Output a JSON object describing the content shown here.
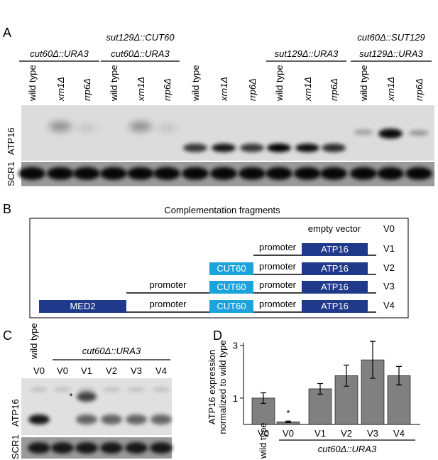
{
  "panel_labels": [
    "A",
    "B",
    "C",
    "D"
  ],
  "panel_a": {
    "groups": [
      {
        "headers": [
          "cut60Δ::URA3"
        ],
        "lanes": [
          "wild type",
          "xrn1Δ",
          "rrp6Δ"
        ]
      },
      {
        "headers": [
          "sut129Δ::CUT60",
          "cut60Δ::URA3"
        ],
        "lanes": [
          "wild type",
          "xrn1Δ",
          "rrp6Δ"
        ]
      },
      {
        "headers": [],
        "lanes": [
          "wild type",
          "xrn1Δ",
          "rrp6Δ"
        ]
      },
      {
        "headers": [
          "sut129Δ::URA3"
        ],
        "lanes": [
          "wild type",
          "xrn1Δ",
          "rrp6Δ"
        ]
      },
      {
        "headers": [
          "cut60Δ::SUT129",
          "sut129Δ::URA3"
        ],
        "lanes": [
          "wild type",
          "xrn1Δ",
          "rrp6Δ"
        ]
      }
    ],
    "rows": [
      "ATP16",
      "SCR1"
    ]
  },
  "panel_b": {
    "title": "Complementation fragments",
    "rows": [
      {
        "label": "V0",
        "parts": [
          "empty vector"
        ]
      },
      {
        "label": "V1",
        "parts": [
          "promoter",
          "ATP16"
        ]
      },
      {
        "label": "V2",
        "parts": [
          "CUT60",
          "promoter",
          "ATP16"
        ]
      },
      {
        "label": "V3",
        "parts": [
          "promoter",
          "CUT60",
          "promoter",
          "ATP16"
        ]
      },
      {
        "label": "V4",
        "parts": [
          "MED2",
          "promoter",
          "CUT60",
          "promoter",
          "ATP16"
        ]
      }
    ]
  },
  "panel_c": {
    "lanes": [
      "V0",
      "V0",
      "V1",
      "V2",
      "V3",
      "V4"
    ],
    "wild_type": "wild type",
    "strain": "cut60Δ::URA3",
    "rows": [
      "ATP16",
      "SCR1"
    ],
    "annotation": "*"
  },
  "chart_data": {
    "type": "bar",
    "categories": [
      "V0",
      "V0",
      "V1",
      "V2",
      "V3",
      "V4"
    ],
    "values": [
      1.0,
      0.1,
      1.35,
      1.85,
      2.45,
      1.85
    ],
    "errors": [
      0.2,
      0.03,
      0.2,
      0.4,
      0.7,
      0.35
    ],
    "color": "#808080",
    "ylabel": [
      "ATP16 expression",
      "normalized to wild type"
    ],
    "ylim": [
      0,
      3.1
    ],
    "yticks": [
      1,
      3
    ],
    "group_labels": [
      "wild type",
      "cut60Δ::URA3"
    ],
    "annotation": "*"
  }
}
